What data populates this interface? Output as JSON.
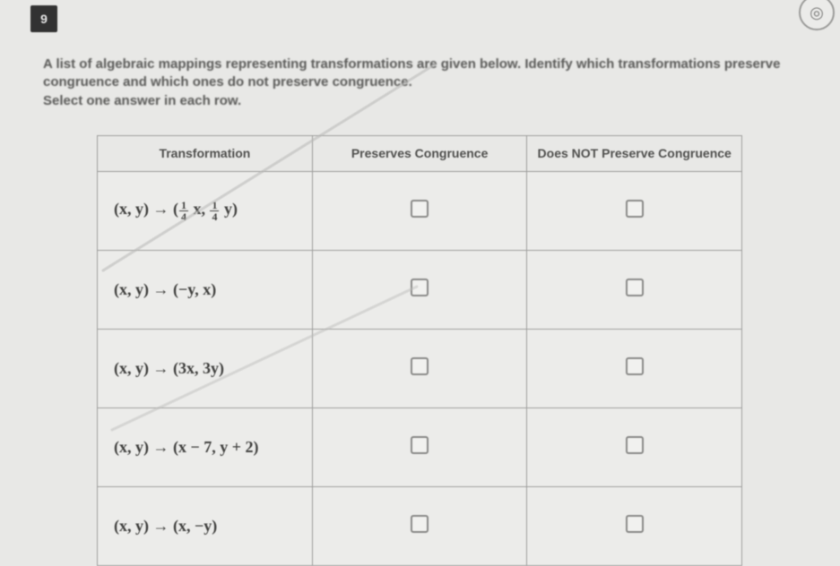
{
  "question_number": "9",
  "instructions": {
    "line1": "A list of algebraic mappings representing transformations are given below. Identify which transformations preserve",
    "line2": "congruence and which ones do not preserve congruence.",
    "line3": "Select one answer in each row."
  },
  "headers": {
    "col1": "Transformation",
    "col2": "Preserves Congruence",
    "col3": "Does NOT Preserve Congruence"
  },
  "rows": [
    {
      "mapping_html": "(x, y) → (<FRAC>1|4</FRAC> x, <FRAC>1|4</FRAC> y)"
    },
    {
      "mapping_html": "(x, y) → (−y, x)"
    },
    {
      "mapping_html": "(x, y) → (3x, 3y)"
    },
    {
      "mapping_html": "(x, y) → (x − 7, y + 2)"
    },
    {
      "mapping_html": "(x, y) → (x, −y)"
    }
  ],
  "colors": {
    "page_bg": "#e8e8e6",
    "text": "#4a4a48",
    "border": "#9e9e9c",
    "qbox_bg": "#2a2a2a"
  }
}
